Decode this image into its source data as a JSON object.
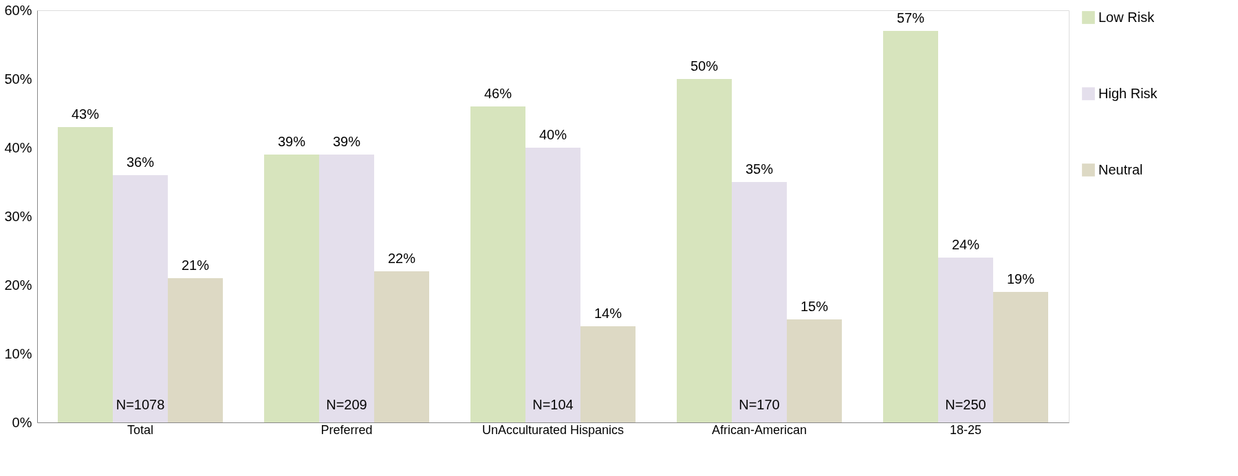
{
  "chart_data": {
    "type": "bar",
    "categories": [
      "Total",
      "Preferred",
      "UnAcculturated Hispanics",
      "African-American",
      "18-25"
    ],
    "series": [
      {
        "name": "Low Risk",
        "color": "#d7e4bd",
        "values": [
          43,
          39,
          46,
          50,
          57
        ],
        "value_labels": [
          "43%",
          "39%",
          "46%",
          "50%",
          "57%"
        ]
      },
      {
        "name": "High Risk",
        "color": "#e4dfec",
        "values": [
          36,
          39,
          40,
          35,
          24
        ],
        "value_labels": [
          "36%",
          "39%",
          "40%",
          "35%",
          "24%"
        ]
      },
      {
        "name": "Neutral",
        "color": "#ddd9c4",
        "values": [
          21,
          22,
          14,
          15,
          19
        ],
        "value_labels": [
          "21%",
          "22%",
          "14%",
          "15%",
          "19%"
        ]
      }
    ],
    "ylim": [
      0,
      60
    ],
    "yticks": [
      {
        "value": 0,
        "label": "0%"
      },
      {
        "value": 10,
        "label": "10%"
      },
      {
        "value": 20,
        "label": "20%"
      },
      {
        "value": 30,
        "label": "30%"
      },
      {
        "value": 40,
        "label": "40%"
      },
      {
        "value": 50,
        "label": "50%"
      },
      {
        "value": 60,
        "label": "60%"
      }
    ],
    "annotations": [
      "N=1078",
      "N=209",
      "N=104",
      "N=170",
      "N=250"
    ],
    "grid": false,
    "legend": "right"
  }
}
